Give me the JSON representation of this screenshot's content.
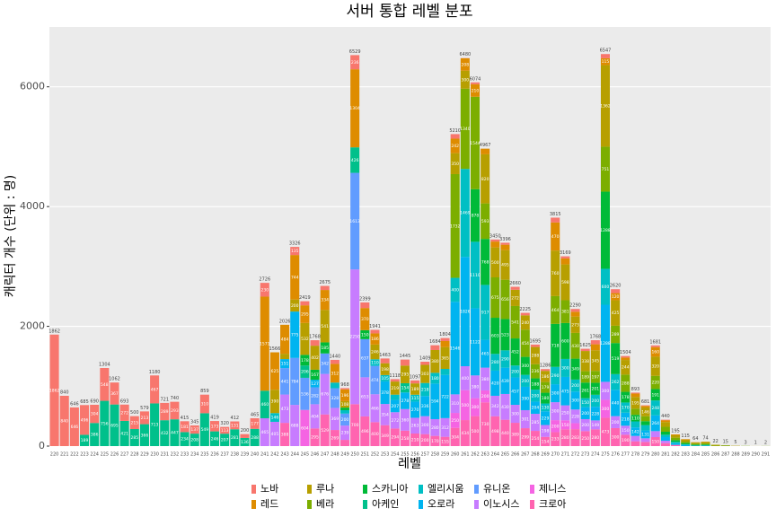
{
  "chart_data": {
    "type": "stacked_bar",
    "title": "서버 통합 레벨 분포",
    "x_label": "레벨",
    "y_label": "캐릭터 개수 (단위 : 명)",
    "categories": [
      "220",
      "221",
      "222",
      "223",
      "224",
      "225",
      "226",
      "227",
      "228",
      "229",
      "230",
      "231",
      "232",
      "233",
      "234",
      "235",
      "236",
      "237",
      "238",
      "239",
      "240",
      "241",
      "242",
      "243",
      "244",
      "245",
      "246",
      "247",
      "248",
      "249",
      "250",
      "251",
      "252",
      "253",
      "254",
      "255",
      "256",
      "257",
      "258",
      "259",
      "260",
      "261",
      "262",
      "263",
      "264",
      "265",
      "266",
      "267",
      "268",
      "269",
      "270",
      "271",
      "272",
      "273",
      "274",
      "275",
      "276",
      "277",
      "278",
      "279",
      "280",
      "281",
      "282",
      "283",
      "284",
      "285",
      "286",
      "287",
      "288",
      "289",
      "290",
      "291"
    ],
    "totals": [
      1862,
      840,
      646,
      685,
      690,
      1304,
      1062,
      693,
      500,
      579,
      1180,
      721,
      740,
      415,
      345,
      859,
      419,
      320,
      412,
      200,
      465,
      2726,
      1566,
      2026,
      3326,
      2419,
      1768,
      2675,
      1440,
      968,
      6529,
      2399,
      1941,
      1463,
      1118,
      1445,
      1097,
      1409,
      1684,
      1804,
      5210,
      6480,
      6074,
      4967,
      3450,
      3396,
      2660,
      2225,
      1695,
      1286,
      3815,
      3169,
      2290,
      1625,
      1768,
      6547,
      2620,
      1504,
      893,
      681,
      1681,
      440,
      195,
      115,
      64,
      74,
      22,
      15,
      5,
      3,
      1,
      2
    ],
    "series": [
      {
        "name": "노바",
        "color": "#F8766D",
        "values": [
          1862,
          840,
          646,
          496,
          304,
          548,
          367,
          272,
          215,
          213,
          467,
          289,
          293,
          181,
          137,
          310,
          173,
          113,
          131,
          64,
          177,
          230,
          null,
          null,
          135,
          68,
          91,
          68,
          67,
          21,
          236,
          93,
          59,
          79,
          40,
          100,
          50,
          52,
          80,
          50,
          76,
          3,
          30,
          null,
          34,
          33,
          49,
          41,
          40,
          30,
          80,
          35,
          47,
          37,
          68,
          70,
          65,
          26,
          15,
          10,
          28,
          8,
          null,
          null,
          null,
          null,
          null,
          null,
          null,
          null,
          null,
          null
        ]
      },
      {
        "name": "레드",
        "color": "#DE8C00",
        "values": [
          null,
          null,
          null,
          null,
          null,
          null,
          null,
          null,
          null,
          null,
          null,
          null,
          null,
          null,
          null,
          null,
          null,
          null,
          null,
          null,
          null,
          1571,
          625,
          484,
          744,
          295,
          null,
          334,
          312,
          196,
          1304,
          370,
          186,
          null,
          null,
          null,
          null,
          null,
          null,
          100,
          242,
          208,
          210,
          94,
          98,
          90,
          null,
          null,
          null,
          null,
          470,
          100,
          80,
          null,
          100,
          115,
          120,
          40,
          58,
          27,
          160,
          30,
          15,
          10,
          5,
          5,
          null,
          null,
          null,
          null,
          null,
          null
        ]
      },
      {
        "name": "루나",
        "color": "#B79F00",
        "values": [
          null,
          null,
          null,
          null,
          null,
          null,
          null,
          null,
          null,
          null,
          null,
          null,
          null,
          null,
          null,
          null,
          null,
          null,
          null,
          null,
          null,
          null,
          390,
          89,
          200,
          532,
          402,
          541,
          null,
          108,
          null,
          null,
          246,
          198,
          219,
          295,
          189,
          303,
          380,
          365,
          350,
          300,
          null,
          820,
          500,
          495,
          272,
          240,
          288,
          186,
          760,
          598,
          273,
          338,
          345,
          1362,
          425,
          244,
          195,
          146,
          320,
          80,
          40,
          30,
          20,
          25,
          14,
          10,
          5,
          null,
          1,
          null
        ]
      },
      {
        "name": "베라",
        "color": "#7CAE00",
        "values": [
          null,
          null,
          null,
          null,
          null,
          null,
          null,
          null,
          null,
          null,
          null,
          null,
          null,
          null,
          null,
          null,
          null,
          null,
          null,
          null,
          null,
          null,
          null,
          null,
          null,
          null,
          null,
          null,
          null,
          null,
          null,
          null,
          null,
          null,
          null,
          null,
          null,
          null,
          null,
          null,
          1732,
          1340,
          1544,
          593,
          675,
          656,
          541,
          454,
          236,
          179,
          464,
          381,
          430,
          189,
          197,
          751,
          289,
          288,
          103,
          82,
          220,
          82,
          40,
          25,
          15,
          17,
          8,
          null,
          null,
          3,
          null,
          2
        ]
      },
      {
        "name": "스카니아",
        "color": "#00BA38",
        "values": [
          null,
          null,
          null,
          null,
          null,
          null,
          null,
          null,
          null,
          null,
          null,
          null,
          null,
          null,
          null,
          null,
          null,
          null,
          null,
          null,
          null,
          null,
          null,
          null,
          null,
          178,
          167,
          185,
          null,
          43,
          null,
          150,
          null,
          null,
          null,
          null,
          null,
          null,
          null,
          null,
          null,
          null,
          878,
          768,
          603,
          523,
          452,
          300,
          188,
          180,
          718,
          600,
          349,
          261,
          201,
          1288,
          519,
          178,
          110,
          65,
          191,
          50,
          30,
          20,
          14,
          15,
          null,
          5,
          null,
          null,
          null,
          null
        ]
      },
      {
        "name": "아케인",
        "color": "#00C08B",
        "values": [
          null,
          null,
          null,
          189,
          386,
          756,
          695,
          421,
          285,
          366,
          713,
          432,
          447,
          234,
          208,
          549,
          246,
          207,
          281,
          136,
          288,
          460,
          null,
          null,
          null,
          206,
          null,
          null,
          null,
          null,
          426,
          null,
          null,
          null,
          null,
          154,
          null,
          null,
          null,
          null,
          null,
          null,
          null,
          null,
          null,
          null,
          null,
          null,
          null,
          null,
          null,
          null,
          null,
          null,
          null,
          null,
          null,
          null,
          null,
          null,
          null,
          null,
          null,
          null,
          null,
          null,
          null,
          null,
          null,
          null,
          null,
          null
        ]
      },
      {
        "name": "엘리시움",
        "color": "#00BFC4",
        "values": [
          null,
          null,
          null,
          null,
          null,
          null,
          null,
          null,
          null,
          null,
          null,
          null,
          null,
          null,
          null,
          null,
          null,
          null,
          null,
          null,
          null,
          null,
          146,
          null,
          null,
          null,
          null,
          null,
          95,
          57,
          null,
          null,
          110,
          105,
          86,
          null,
          115,
          218,
          180,
          100,
          400,
          1469,
          1110,
          917,
          280,
          290,
          200,
          200,
          200,
          130,
          290,
          300,
          200,
          150,
          200,
          600,
          262,
          170,
          100,
          90,
          248,
          40,
          20,
          10,
          null,
          null,
          null,
          null,
          null,
          null,
          null,
          null
        ]
      },
      {
        "name": "오로라",
        "color": "#00B4F0",
        "values": [
          null,
          null,
          null,
          null,
          null,
          null,
          null,
          null,
          null,
          null,
          null,
          null,
          null,
          null,
          null,
          null,
          null,
          null,
          null,
          null,
          null,
          null,
          null,
          151,
          775,
          null,
          127,
          null,
          null,
          null,
          null,
          null,
          null,
          378,
          207,
          278,
          270,
          336,
          594,
          722,
          1546,
          1826,
          1122,
          465,
          420,
          439,
          457,
          390,
          204,
          229,
          300,
          475,
          300,
          200,
          228,
          1288,
          440,
          218,
          142,
          131,
          264,
          60,
          30,
          20,
          10,
          12,
          null,
          null,
          null,
          null,
          null,
          null
        ]
      },
      {
        "name": "유니온",
        "color": "#619CFF",
        "values": [
          null,
          null,
          null,
          null,
          null,
          null,
          null,
          null,
          null,
          null,
          null,
          null,
          null,
          null,
          null,
          null,
          null,
          null,
          null,
          null,
          null,
          null,
          null,
          441,
          784,
          536,
          282,
          342,
          328,
          200,
          1613,
          637,
          474,
          null,
          null,
          null,
          null,
          null,
          null,
          null,
          null,
          null,
          null,
          null,
          null,
          null,
          null,
          null,
          null,
          null,
          null,
          null,
          null,
          null,
          null,
          null,
          null,
          null,
          null,
          null,
          null,
          null,
          null,
          null,
          null,
          null,
          null,
          null,
          null,
          null,
          null,
          null
        ]
      },
      {
        "name": "이노시스",
        "color": "#C77CFF",
        "values": [
          null,
          null,
          null,
          null,
          null,
          null,
          null,
          null,
          null,
          null,
          null,
          null,
          null,
          null,
          null,
          null,
          null,
          null,
          null,
          null,
          null,
          465,
          405,
          473,
          688,
          null,
          404,
          676,
          369,
          239,
          2250,
          653,
          466,
          354,
          272,
          360,
          263,
          300,
          280,
          312,
          310,
          400,
          380,
          380,
          342,
          430,
          300,
          301,
          285,
          198,
          300,
          250,
          228,
          200,
          149,
          300,
          200,
          150,
          90,
          60,
          100,
          40,
          null,
          null,
          null,
          null,
          null,
          null,
          null,
          null,
          null,
          null
        ]
      },
      {
        "name": "제니스",
        "color": "#F564E3",
        "values": [
          null,
          null,
          null,
          null,
          null,
          null,
          null,
          null,
          null,
          null,
          null,
          null,
          null,
          null,
          null,
          null,
          null,
          null,
          null,
          null,
          null,
          null,
          null,
          null,
          null,
          604,
          null,
          null,
          null,
          null,
          null,
          null,
          null,
          null,
          null,
          null,
          null,
          null,
          null,
          null,
          250,
          500,
          300,
          200,
          null,
          null,
          null,
          null,
          null,
          null,
          200,
          150,
          100,
          null,
          null,
          300,
          null,
          null,
          null,
          null,
          null,
          null,
          null,
          null,
          null,
          null,
          null,
          null,
          null,
          null,
          null,
          null
        ]
      },
      {
        "name": "크로아",
        "color": "#FF64B0",
        "values": [
          null,
          null,
          null,
          null,
          null,
          null,
          null,
          null,
          null,
          null,
          null,
          null,
          null,
          null,
          null,
          null,
          null,
          null,
          null,
          null,
          null,
          null,
          null,
          388,
          null,
          null,
          295,
          529,
          269,
          104,
          700,
          496,
          400,
          349,
          294,
          258,
          210,
          200,
          170,
          155,
          304,
          434,
          500,
          730,
          498,
          440,
          389,
          299,
          254,
          154,
          233,
          280,
          283,
          250,
          280,
          473,
          300,
          190,
          80,
          70,
          150,
          50,
          20,
          null,
          null,
          null,
          null,
          null,
          null,
          null,
          null,
          null
        ]
      }
    ],
    "ylim": [
      0,
      7000
    ],
    "yticks": [
      0,
      2000,
      4000,
      6000
    ],
    "grid": true,
    "legend": "bottom"
  }
}
